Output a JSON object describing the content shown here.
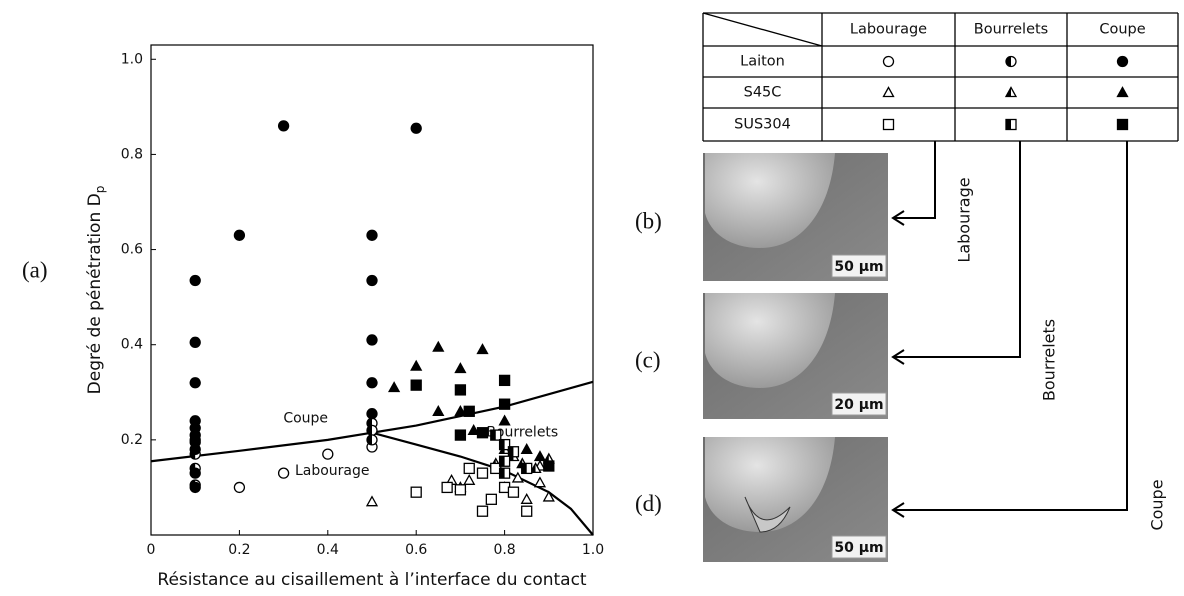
{
  "panel_labels": [
    "(a)",
    "(b)",
    "(c)",
    "(d)"
  ],
  "chart_data": {
    "type": "scatter",
    "y_label": "Degré de pénétration D",
    "y_label_subscript": "p",
    "x_label": "Résistance au cisaillement à l’interface du contact",
    "xlim": [
      0,
      1.0
    ],
    "ylim": [
      0,
      1.03
    ],
    "xticks": [
      0,
      0.2,
      0.4,
      0.6,
      0.8,
      {
        "value": 1.0,
        "label": "1.0"
      }
    ],
    "yticks": [
      0.2,
      0.4,
      0.6,
      0.8,
      {
        "value": 1.0,
        "label": "1.0"
      }
    ],
    "annotations": [
      "Coupe",
      "Bourrelets",
      "Labourage"
    ],
    "curves": [
      {
        "color": "#000000",
        "x": [
          0,
          0.2,
          0.4,
          0.5,
          0.6,
          0.8,
          1.0
        ],
        "values": [
          0.155,
          0.177,
          0.2,
          0.215,
          0.23,
          0.27,
          0.322
        ]
      },
      {
        "color": "#000000",
        "x": [
          0.5,
          0.6,
          0.7,
          0.8,
          0.9,
          0.95,
          1.0
        ],
        "values": [
          0.215,
          0.19,
          0.165,
          0.135,
          0.09,
          0.055,
          0.0
        ]
      }
    ],
    "series": [
      {
        "marker": "circle",
        "fill": "open",
        "x": [
          0.2,
          0.3,
          0.4,
          0.5
        ],
        "values": [
          0.1,
          0.13,
          0.17,
          0.185
        ]
      },
      {
        "marker": "circle",
        "fill": "half",
        "x": [
          0.1,
          0.1,
          0.1,
          0.1,
          0.5,
          0.5,
          0.5
        ],
        "values": [
          0.2,
          0.17,
          0.14,
          0.105,
          0.235,
          0.22,
          0.2
        ]
      },
      {
        "marker": "circle",
        "fill": "filled",
        "x": [
          0.1,
          0.1,
          0.1,
          0.1,
          0.1,
          0.1,
          0.1,
          0.1,
          0.1,
          0.1,
          0.2,
          0.3,
          0.5,
          0.5,
          0.5,
          0.5,
          0.5,
          0.6
        ],
        "values": [
          0.535,
          0.405,
          0.32,
          0.24,
          0.225,
          0.21,
          0.195,
          0.18,
          0.13,
          0.1,
          0.63,
          0.86,
          0.63,
          0.535,
          0.41,
          0.32,
          0.255,
          0.855
        ]
      },
      {
        "marker": "triangle",
        "fill": "open",
        "x": [
          0.5,
          0.7,
          0.72,
          0.68,
          0.8,
          0.83,
          0.88,
          0.85,
          0.9,
          0.88
        ],
        "values": [
          0.07,
          0.1,
          0.115,
          0.115,
          0.1,
          0.12,
          0.11,
          0.075,
          0.08,
          0.145
        ]
      },
      {
        "marker": "triangle",
        "fill": "half",
        "x": [
          0.8,
          0.82,
          0.84,
          0.87,
          0.9,
          0.78
        ],
        "values": [
          0.18,
          0.165,
          0.15,
          0.14,
          0.16,
          0.15
        ]
      },
      {
        "marker": "triangle",
        "fill": "filled",
        "x": [
          0.55,
          0.6,
          0.65,
          0.7,
          0.75,
          0.65,
          0.7,
          0.73,
          0.8,
          0.85,
          0.88
        ],
        "values": [
          0.31,
          0.355,
          0.395,
          0.35,
          0.39,
          0.26,
          0.26,
          0.22,
          0.24,
          0.18,
          0.165
        ]
      },
      {
        "marker": "square",
        "fill": "open",
        "x": [
          0.6,
          0.67,
          0.7,
          0.75,
          0.77,
          0.75,
          0.8,
          0.82,
          0.85,
          0.78,
          0.72
        ],
        "values": [
          0.09,
          0.1,
          0.095,
          0.13,
          0.075,
          0.05,
          0.1,
          0.09,
          0.05,
          0.14,
          0.14
        ]
      },
      {
        "marker": "square",
        "fill": "half",
        "x": [
          0.78,
          0.8,
          0.82,
          0.8,
          0.85,
          0.8
        ],
        "values": [
          0.21,
          0.19,
          0.175,
          0.155,
          0.14,
          0.13
        ]
      },
      {
        "marker": "square",
        "fill": "filled",
        "x": [
          0.6,
          0.7,
          0.72,
          0.7,
          0.75,
          0.8,
          0.8,
          0.9
        ],
        "values": [
          0.315,
          0.305,
          0.26,
          0.21,
          0.215,
          0.325,
          0.275,
          0.145
        ]
      }
    ]
  },
  "legend_table": {
    "columns": [
      "Labourage",
      "Bourrelets",
      "Coupe"
    ],
    "rows": [
      "Laiton",
      "S45C",
      "SUS304"
    ]
  },
  "micrographs": [
    {
      "scale": "50 μm",
      "arrow_label": "Labourage"
    },
    {
      "scale": "20 μm",
      "arrow_label": "Bourrelets"
    },
    {
      "scale": "50 μm",
      "arrow_label": "Coupe"
    }
  ]
}
